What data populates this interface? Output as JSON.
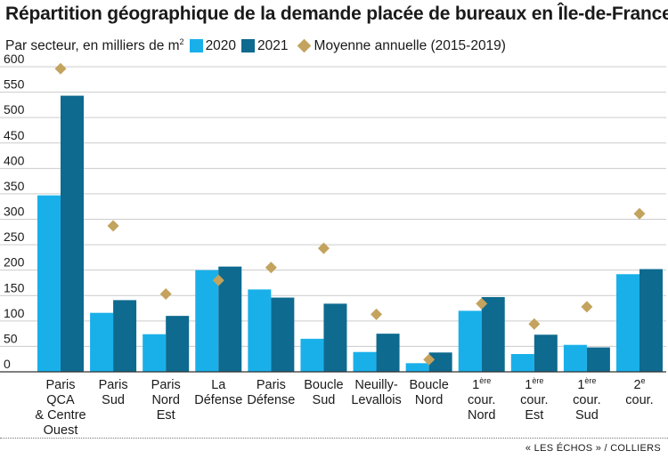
{
  "title": "Répartition géographique de la demande placée de bureaux en Île-de-France",
  "subtitle_main": "Par secteur, en milliers de m",
  "subtitle_sup": "2",
  "source": "« LES ÉCHOS » / COLLIERS",
  "colors": {
    "s2020": "#19b0ea",
    "s2021": "#0e6a8f",
    "avg": "#c3a35d",
    "grid": "#cccccc",
    "axis": "#333333"
  },
  "chart_data": {
    "type": "bar",
    "ylim": [
      0,
      600
    ],
    "yticks": [
      0,
      50,
      100,
      150,
      200,
      250,
      300,
      350,
      400,
      450,
      500,
      550,
      600
    ],
    "grid": "horizontal",
    "legend": "top-left",
    "categories": [
      [
        "Paris",
        "QCA",
        "& Centre",
        "Ouest"
      ],
      [
        "Paris",
        "Sud"
      ],
      [
        "Paris",
        "Nord",
        "Est"
      ],
      [
        "La",
        "Défense"
      ],
      [
        "Paris",
        "Défense"
      ],
      [
        "Boucle",
        "Sud"
      ],
      [
        "Neuilly-",
        "Levallois"
      ],
      [
        "Boucle",
        "Nord"
      ],
      [
        "1|ère",
        "cour.",
        "Nord"
      ],
      [
        "1|ère",
        "cour.",
        "Est"
      ],
      [
        "1|ère",
        "cour.",
        "Sud"
      ],
      [
        "2|e",
        "cour."
      ]
    ],
    "series": [
      {
        "name": "2020",
        "type": "bar",
        "values": [
          347,
          116,
          74,
          200,
          162,
          65,
          39,
          17,
          120,
          35,
          53,
          192
        ]
      },
      {
        "name": "2021",
        "type": "bar",
        "values": [
          543,
          141,
          110,
          207,
          146,
          134,
          75,
          38,
          147,
          73,
          48,
          202
        ]
      },
      {
        "name": "Moyenne annuelle (2015-2019)",
        "type": "marker",
        "values": [
          596,
          287,
          153,
          180,
          205,
          243,
          113,
          24,
          134,
          94,
          128,
          311
        ]
      }
    ]
  }
}
